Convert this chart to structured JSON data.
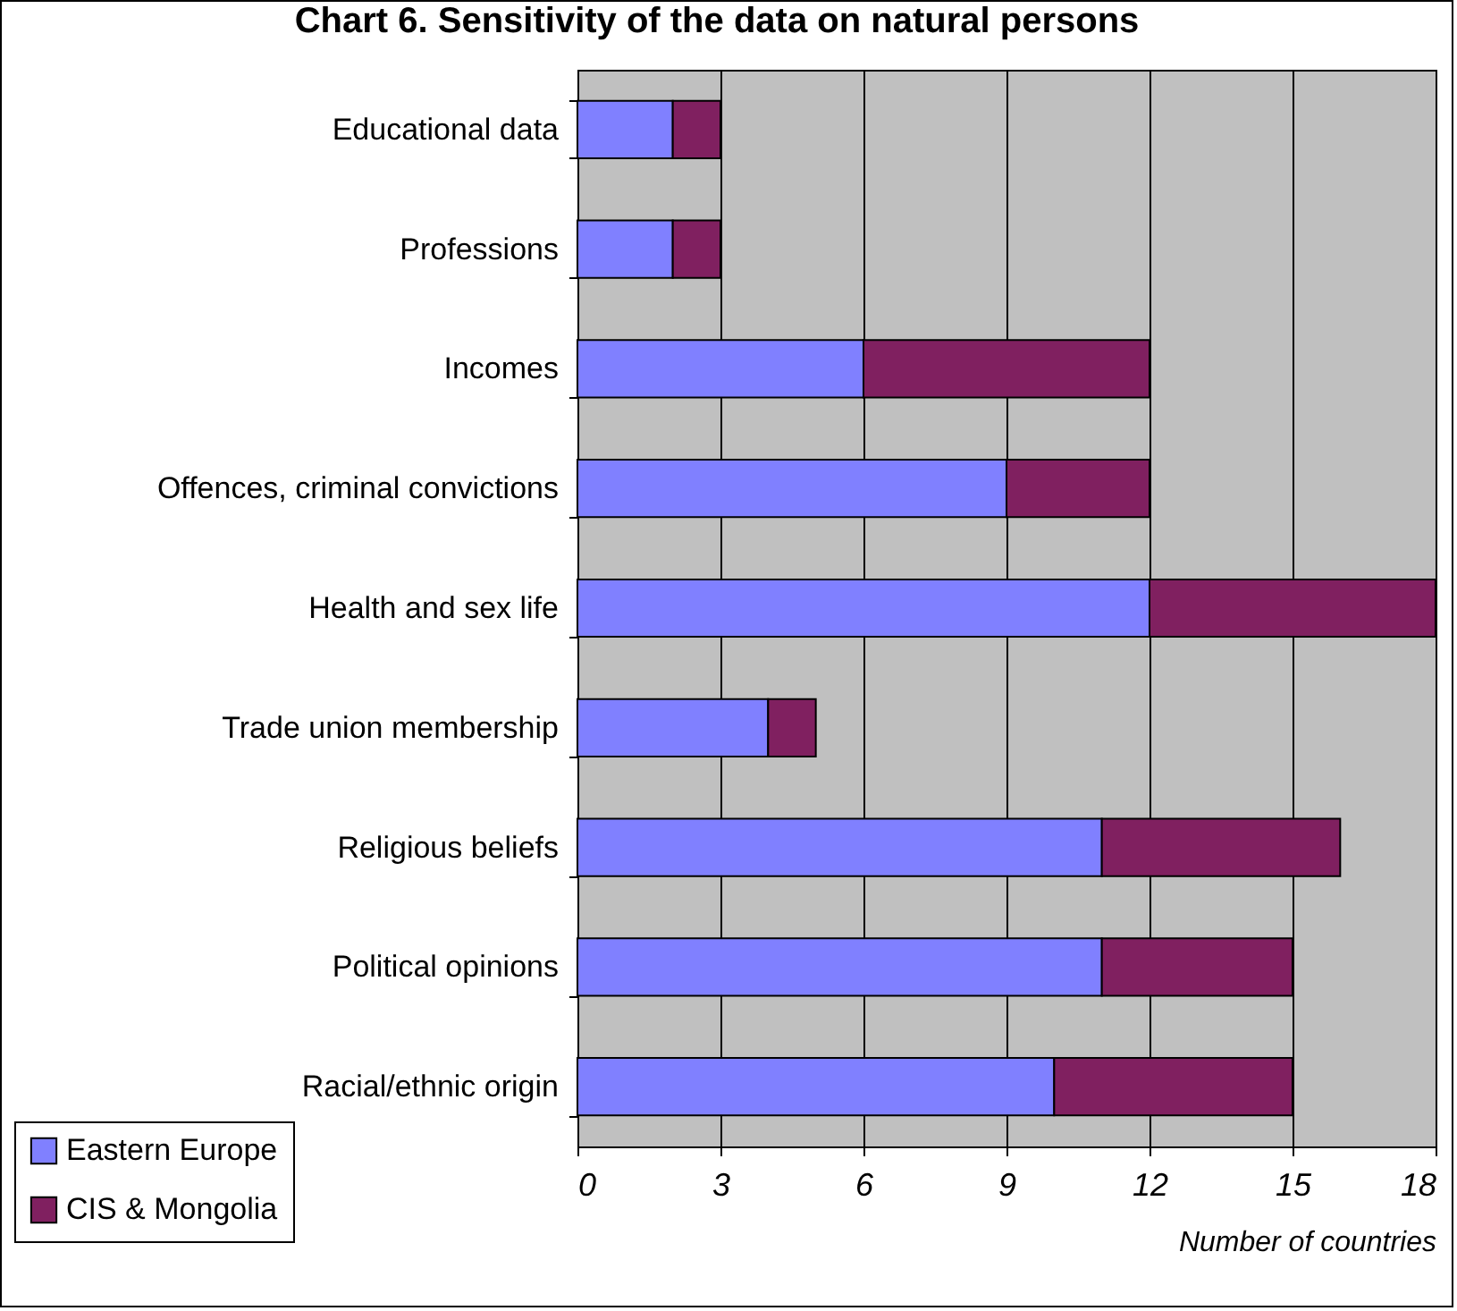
{
  "chart_data": {
    "type": "bar",
    "orientation": "horizontal",
    "stacked": true,
    "title": "Chart 6.  Sensitivity of the data on natural persons",
    "xlabel": "Number of countries",
    "categories": [
      "Educational data",
      "Professions",
      "Incomes",
      "Offences, criminal convictions",
      "Health and sex life",
      "Trade union membership",
      "Religious beliefs",
      "Political opinions",
      "Racial/ethnic origin"
    ],
    "series": [
      {
        "name": "Eastern Europe",
        "color": "#8080ff",
        "values": [
          2,
          2,
          6,
          9,
          12,
          4,
          11,
          11,
          10
        ]
      },
      {
        "name": "CIS & Mongolia",
        "color": "#802060",
        "values": [
          1,
          1,
          6,
          3,
          6,
          1,
          5,
          4,
          5
        ]
      }
    ],
    "xlim": [
      0,
      18
    ],
    "xticks": [
      0,
      3,
      6,
      9,
      12,
      15,
      18
    ],
    "grid": "x",
    "legend": "bottom left"
  }
}
